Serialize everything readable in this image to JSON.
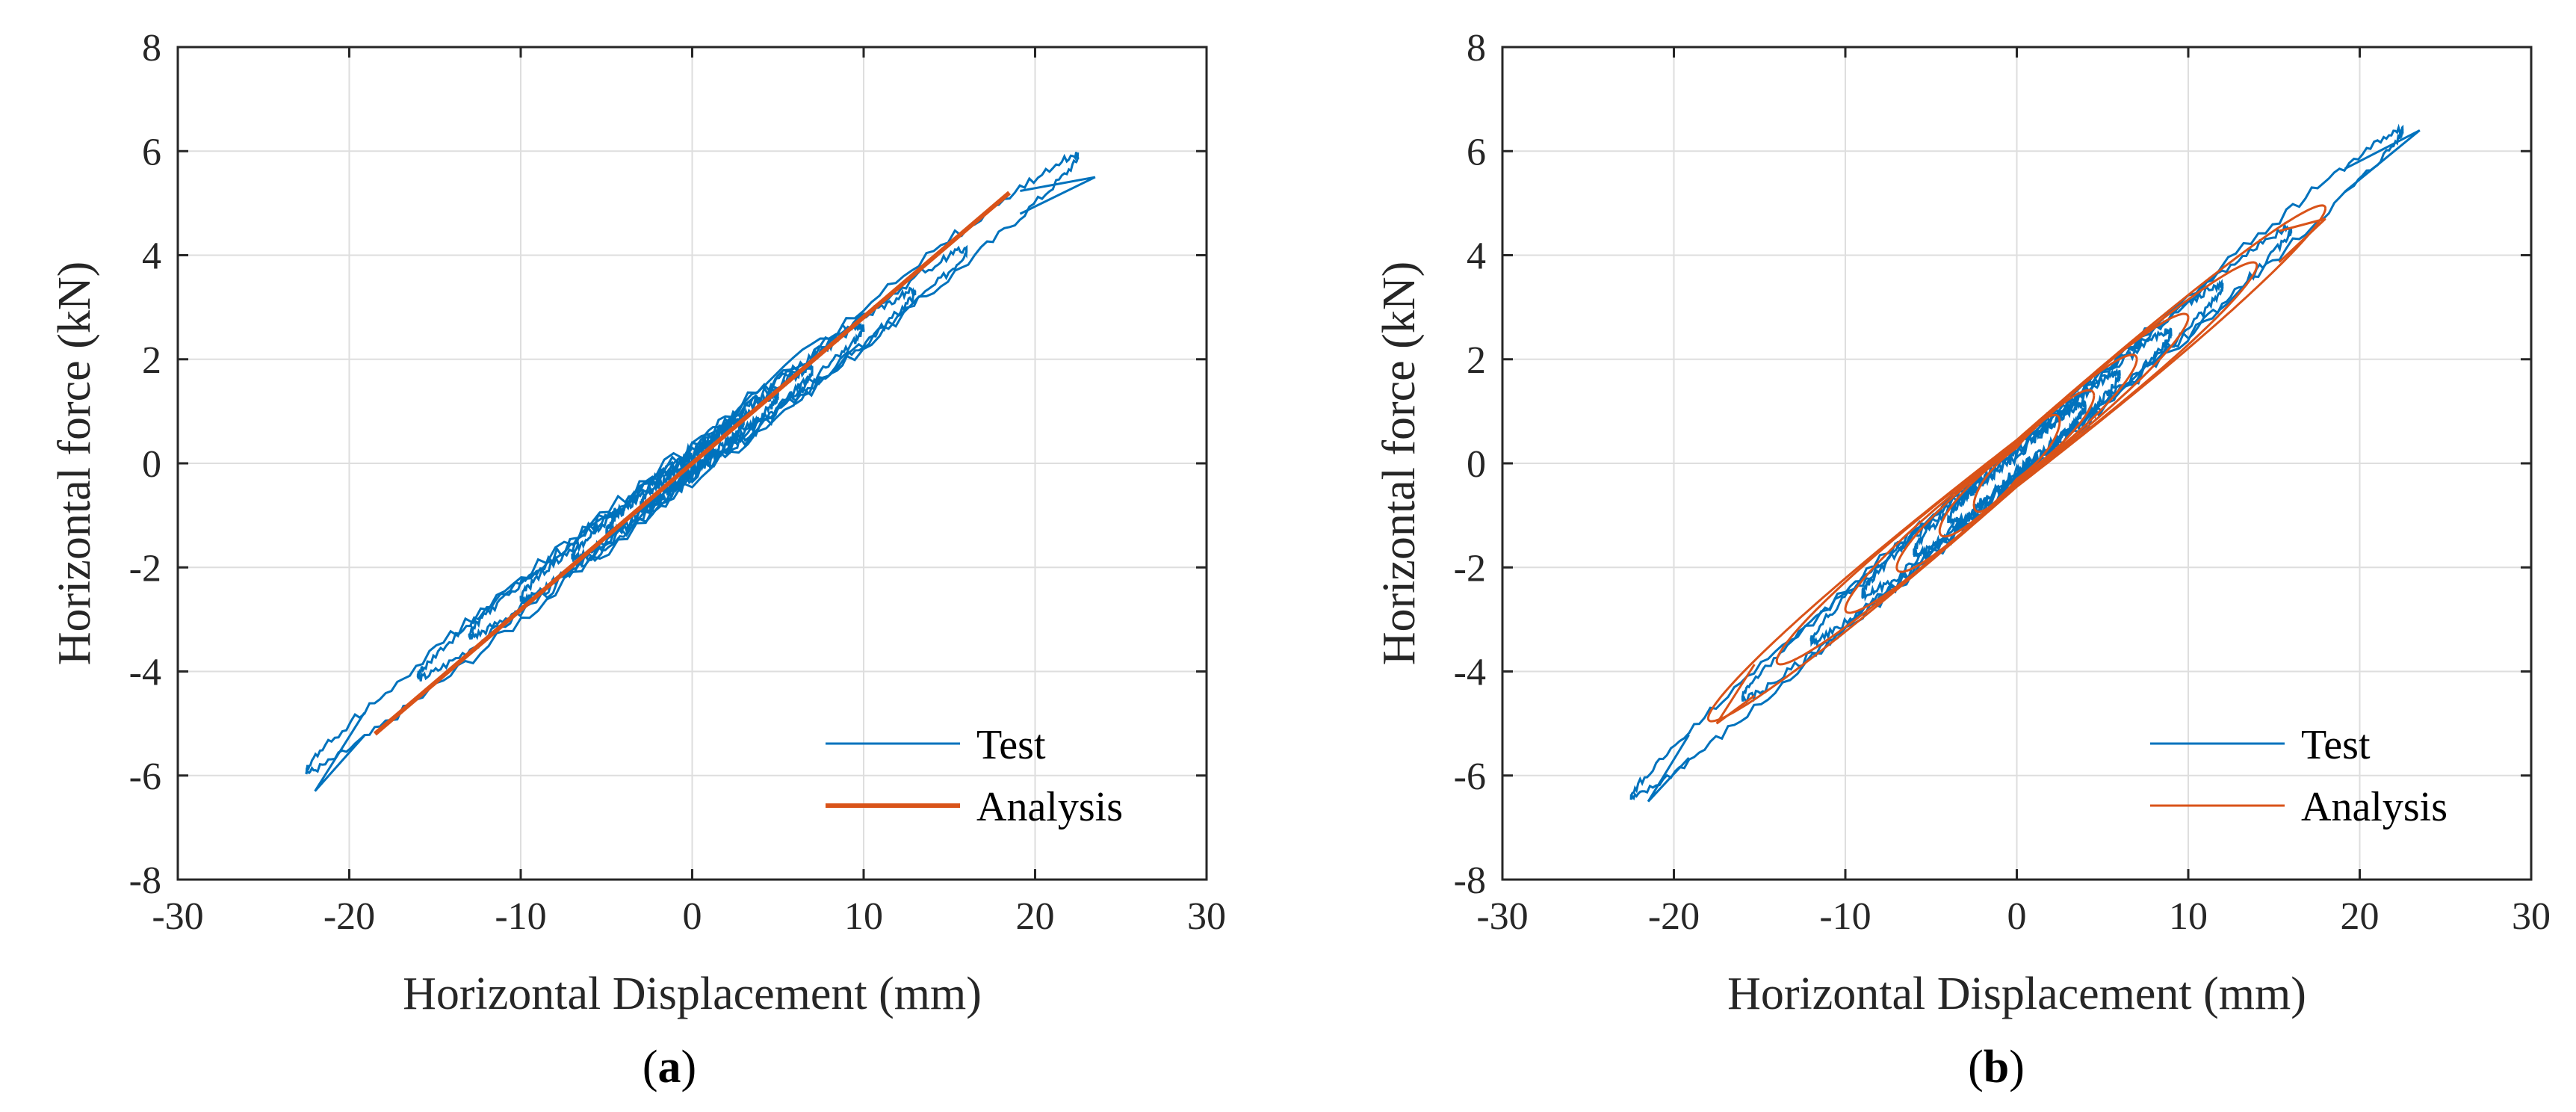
{
  "chart_data": [
    {
      "type": "line",
      "panel": "a",
      "caption_letter": "a",
      "title": "",
      "xlabel": "Horizontal Displacement (mm)",
      "ylabel": "Horizontal force (kN)",
      "xlim": [
        -30,
        30
      ],
      "ylim": [
        -8,
        8
      ],
      "xticks": [
        -30,
        -20,
        -10,
        0,
        10,
        20,
        30
      ],
      "yticks": [
        -8,
        -6,
        -4,
        -2,
        0,
        2,
        4,
        6,
        8
      ],
      "grid": true,
      "legend": {
        "position": "bottom-right",
        "entries": [
          "Test",
          "Analysis"
        ]
      },
      "series": [
        {
          "name": "Test",
          "color": "#0072BD",
          "kind": "hysteresis",
          "loops": [
            {
              "amp_x": 22.5,
              "amp_y": 5.9,
              "width": 0.55
            },
            {
              "amp_x": 16.0,
              "amp_y": 4.1,
              "width": 0.45
            },
            {
              "amp_x": 13.0,
              "amp_y": 3.3,
              "width": 0.4
            },
            {
              "amp_x": 10.0,
              "amp_y": 2.6,
              "width": 0.35
            },
            {
              "amp_x": 7.0,
              "amp_y": 1.8,
              "width": 0.3
            },
            {
              "amp_x": 5.0,
              "amp_y": 1.3,
              "width": 0.25
            },
            {
              "amp_x": 3.0,
              "amp_y": 0.8,
              "width": 0.2
            }
          ],
          "peak_points": [
            [
              23.5,
              5.5
            ],
            [
              -22.0,
              -6.3
            ]
          ]
        },
        {
          "name": "Analysis",
          "color": "#D95319",
          "kind": "line",
          "x": [
            -18.5,
            18.5
          ],
          "y": [
            -5.2,
            5.2
          ]
        }
      ]
    },
    {
      "type": "line",
      "panel": "b",
      "caption_letter": "b",
      "title": "",
      "xlabel": "Horizontal Displacement (mm)",
      "ylabel": "Horizontal force (kN)",
      "xlim": [
        -30,
        30
      ],
      "ylim": [
        -8,
        8
      ],
      "xticks": [
        -30,
        -20,
        -10,
        0,
        10,
        20,
        30
      ],
      "yticks": [
        -8,
        -6,
        -4,
        -2,
        0,
        2,
        4,
        6,
        8
      ],
      "grid": true,
      "legend": {
        "position": "bottom-right",
        "entries": [
          "Test",
          "Analysis"
        ]
      },
      "series": [
        {
          "name": "Test",
          "color": "#0072BD",
          "kind": "hysteresis",
          "loops": [
            {
              "amp_x": 22.5,
              "amp_y": 6.4,
              "width": 0.55
            },
            {
              "amp_x": 16.0,
              "amp_y": 4.5,
              "width": 0.5
            },
            {
              "amp_x": 12.0,
              "amp_y": 3.4,
              "width": 0.45
            },
            {
              "amp_x": 9.0,
              "amp_y": 2.5,
              "width": 0.4
            },
            {
              "amp_x": 6.0,
              "amp_y": 1.7,
              "width": 0.35
            },
            {
              "amp_x": 4.0,
              "amp_y": 1.1,
              "width": 0.3
            }
          ],
          "peak_points": [
            [
              23.5,
              6.4
            ],
            [
              -21.5,
              -6.5
            ]
          ]
        },
        {
          "name": "Analysis",
          "color": "#D95319",
          "kind": "hysteresis",
          "loops": [
            {
              "amp_x": 18.0,
              "amp_y": 4.9,
              "width": 0.75
            },
            {
              "amp_x": 14.0,
              "amp_y": 3.8,
              "width": 0.7
            },
            {
              "amp_x": 10.0,
              "amp_y": 2.8,
              "width": 0.65
            },
            {
              "amp_x": 7.0,
              "amp_y": 2.0,
              "width": 0.6
            },
            {
              "amp_x": 4.5,
              "amp_y": 1.3,
              "width": 0.55
            },
            {
              "amp_x": 2.5,
              "amp_y": 0.8,
              "width": 0.5
            }
          ],
          "peak_points": [
            [
              18.0,
              4.7
            ],
            [
              -17.5,
              -5.0
            ]
          ]
        }
      ]
    }
  ]
}
